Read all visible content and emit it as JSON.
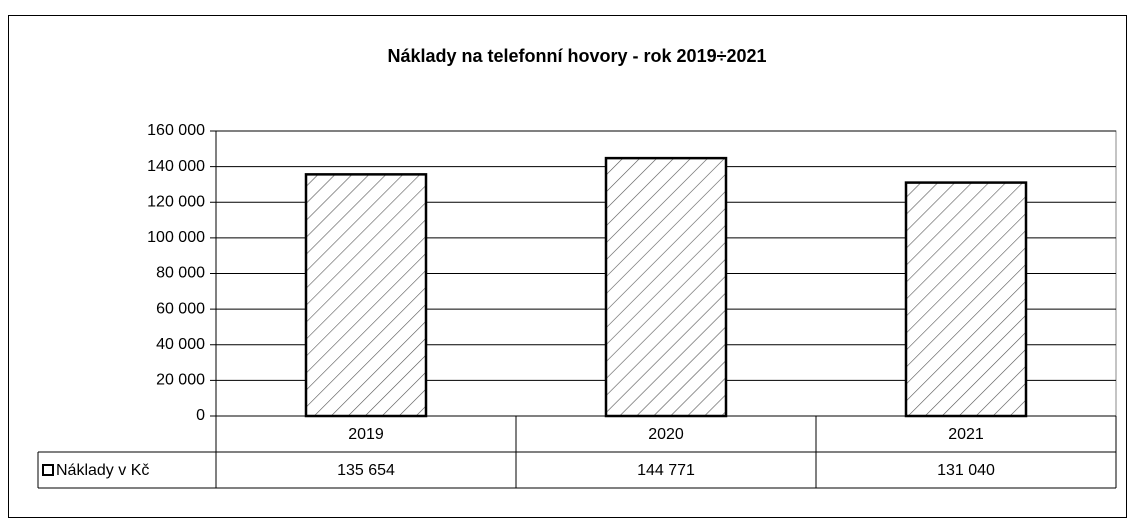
{
  "chart_data": {
    "type": "bar",
    "title": "Náklady na telefonní hovory - rok 2019÷2021",
    "categories": [
      "2019",
      "2020",
      "2021"
    ],
    "series": [
      {
        "name": "Náklady v Kč",
        "values": [
          135654,
          144771,
          131040
        ],
        "value_labels": [
          "135 654",
          "144 771",
          "131 040"
        ]
      }
    ],
    "ylim": [
      0,
      160000
    ],
    "yticks": [
      0,
      {
        "value": 20000,
        "label": "20 000"
      },
      {
        "value": 40000,
        "label": "40 000"
      },
      {
        "value": 60000,
        "label": "60 000"
      },
      {
        "value": 80000,
        "label": "80 000"
      },
      {
        "value": 100000,
        "label": "100 000"
      },
      {
        "value": 120000,
        "label": "120 000"
      },
      {
        "value": 140000,
        "label": "140 000"
      },
      {
        "value": 160000,
        "label": "160 000"
      }
    ],
    "grid": true
  }
}
